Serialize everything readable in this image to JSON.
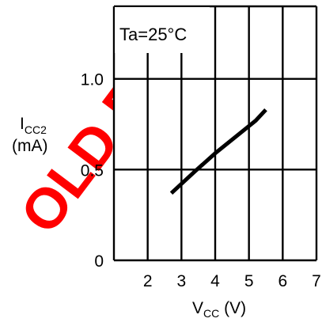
{
  "chart_data": {
    "type": "line",
    "x": [
      2.7,
      3.4,
      4.0,
      4.6,
      5.2,
      5.5
    ],
    "series": [
      {
        "values": [
          0.37,
          0.49,
          0.59,
          0.68,
          0.77,
          0.83
        ]
      }
    ],
    "xlim": [
      1,
      7
    ],
    "ylim": [
      0,
      1.4
    ],
    "x_ticks": [
      {
        "value": 2,
        "label": "2"
      },
      {
        "value": 3,
        "label": "3"
      },
      {
        "value": 4,
        "label": "4"
      },
      {
        "value": 5,
        "label": "5"
      },
      {
        "value": 6,
        "label": "6"
      },
      {
        "value": 7,
        "label": "7"
      }
    ],
    "y_ticks": [
      {
        "value": 0,
        "label": "0"
      },
      {
        "value": 0.5,
        "label": "0.5"
      },
      {
        "value": 1.0,
        "label": "1.0"
      }
    ],
    "xlabel": {
      "main": "V",
      "sub": "CC",
      "rest": " (V)"
    },
    "ylabel": {
      "main": "I",
      "sub": "CC2",
      "line2": "(mA)"
    },
    "annotation": "Ta=25°C",
    "grid": true,
    "line_color": "#000000",
    "watermark": {
      "text": "OLD FOR",
      "color": "#ff0000"
    }
  }
}
